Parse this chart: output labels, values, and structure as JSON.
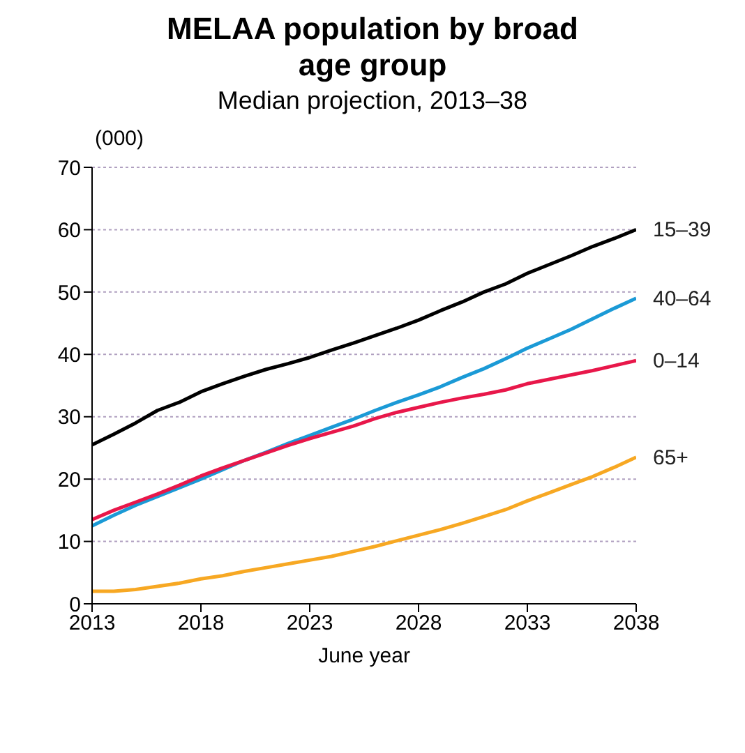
{
  "chart_data": {
    "type": "line",
    "title": "MELAA population by broad age group",
    "subtitle": "Median projection, 2013–38",
    "ylabel": "(000)",
    "xlabel": "June year",
    "x": [
      2013,
      2014,
      2015,
      2016,
      2017,
      2018,
      2019,
      2020,
      2021,
      2022,
      2023,
      2024,
      2025,
      2026,
      2027,
      2028,
      2029,
      2030,
      2031,
      2032,
      2033,
      2034,
      2035,
      2036,
      2037,
      2038
    ],
    "xlim": [
      2013,
      2038
    ],
    "xticks": [
      2013,
      2018,
      2023,
      2028,
      2033,
      2038
    ],
    "ylim": [
      0,
      70
    ],
    "yticks": [
      0,
      10,
      20,
      30,
      40,
      50,
      60,
      70
    ],
    "grid": "y",
    "marker": "none",
    "line_style": "solid",
    "series": [
      {
        "name": "15–39",
        "color": "#000000",
        "values": [
          25.5,
          27.2,
          29,
          31,
          32.3,
          34,
          35.3,
          36.5,
          37.6,
          38.5,
          39.5,
          40.7,
          41.8,
          43,
          44.2,
          45.5,
          47,
          48.4,
          50,
          51.3,
          53,
          54.4,
          55.8,
          57.3,
          58.6,
          60
        ]
      },
      {
        "name": "40–64",
        "color": "#1b9ad6",
        "values": [
          12.5,
          14.2,
          15.8,
          17.2,
          18.6,
          20,
          21.5,
          23,
          24.3,
          25.7,
          27,
          28.3,
          29.6,
          31,
          32.3,
          33.5,
          34.8,
          36.3,
          37.7,
          39.3,
          41,
          42.5,
          44,
          45.7,
          47.4,
          49
        ]
      },
      {
        "name": "0–14",
        "color": "#e8174a",
        "values": [
          13.5,
          15,
          16.3,
          17.6,
          19,
          20.5,
          21.8,
          23,
          24.2,
          25.4,
          26.5,
          27.5,
          28.5,
          29.7,
          30.7,
          31.5,
          32.3,
          33,
          33.6,
          34.3,
          35.3,
          36,
          36.7,
          37.4,
          38.2,
          39
        ]
      },
      {
        "name": "65+",
        "color": "#f7a823",
        "values": [
          2,
          2,
          2.3,
          2.8,
          3.3,
          4,
          4.5,
          5.2,
          5.8,
          6.4,
          7,
          7.6,
          8.4,
          9.2,
          10.1,
          11,
          11.9,
          12.9,
          14,
          15.1,
          16.5,
          17.8,
          19.1,
          20.4,
          21.9,
          23.5
        ]
      }
    ]
  }
}
